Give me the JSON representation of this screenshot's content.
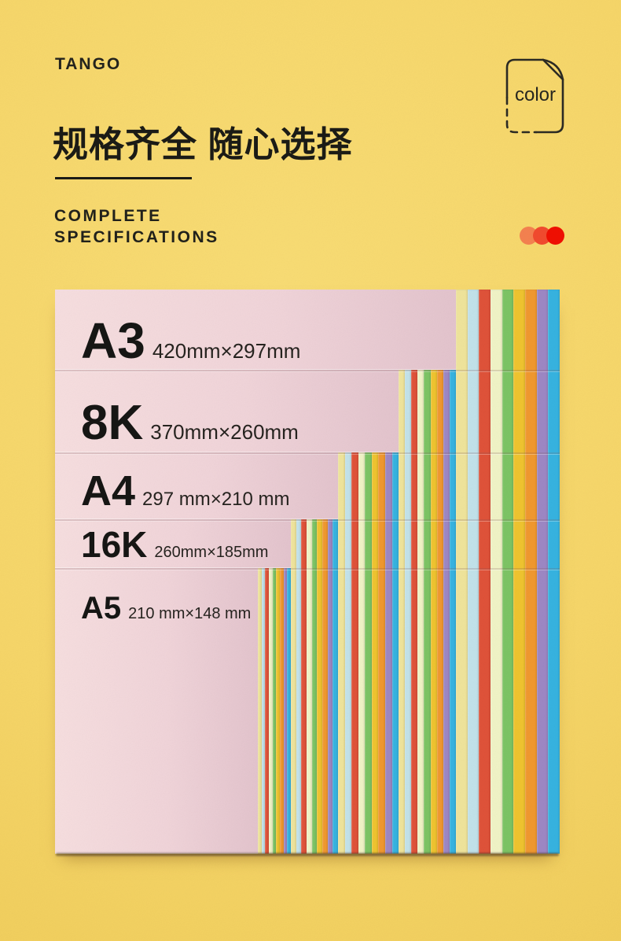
{
  "brand": "TANGO",
  "corner_icon": {
    "label": "color"
  },
  "heading": "规格齐全 随心选择",
  "subtitle": {
    "line1": "COMPLETE",
    "line2": "SPECIFICATIONS"
  },
  "accent_dots": [
    "#F4814F",
    "#F14A2E",
    "#F00F02"
  ],
  "palette": {
    "background": "#F6D76B",
    "ink": "#1B1B16",
    "sheet_pink_light": "#F6DEDF",
    "sheet_pink_dark": "#E3C4CD"
  },
  "stripe_palette": [
    "#EFE49B",
    "#C2E2EA",
    "#DF5239",
    "#F0F3C6",
    "#7CC464",
    "#EFC42F",
    "#F0982F",
    "#9D87C4",
    "#36B3E0"
  ],
  "sizes": [
    {
      "name": "A3",
      "dimensions": "420mm×297mm"
    },
    {
      "name": "8K",
      "dimensions": "370mm×260mm"
    },
    {
      "name": "A4",
      "dimensions": "297 mm×210 mm"
    },
    {
      "name": "16K",
      "dimensions": "260mm×185mm"
    },
    {
      "name": "A5",
      "dimensions": "210 mm×148 mm"
    }
  ]
}
